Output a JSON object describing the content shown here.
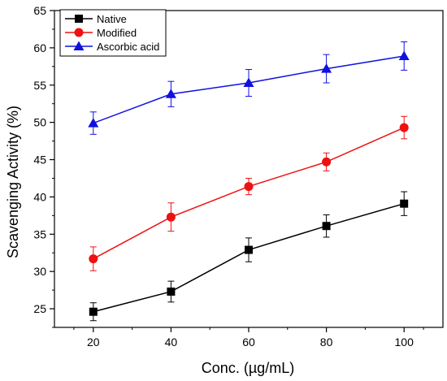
{
  "chart_data": {
    "type": "line",
    "title": "",
    "xlabel": "Conc. (µg/mL)",
    "ylabel": "Scavenging Activity (%)",
    "x": [
      20,
      40,
      60,
      80,
      100
    ],
    "xlim": [
      10,
      110
    ],
    "ylim": [
      22.5,
      65
    ],
    "xticks": [
      20,
      40,
      60,
      80,
      100
    ],
    "yticks": [
      25,
      30,
      35,
      40,
      45,
      50,
      55,
      60,
      65
    ],
    "grid": false,
    "legend_position": "top-left",
    "series": [
      {
        "name": "Native",
        "color": "#000000",
        "marker": "square",
        "values": [
          24.6,
          27.3,
          32.9,
          36.1,
          39.1
        ],
        "errors": [
          1.2,
          1.4,
          1.6,
          1.5,
          1.6
        ]
      },
      {
        "name": "Modified",
        "color": "#ee1111",
        "marker": "circle",
        "values": [
          31.7,
          37.3,
          41.4,
          44.7,
          49.3
        ],
        "errors": [
          1.6,
          1.9,
          1.1,
          1.2,
          1.5
        ]
      },
      {
        "name": "Ascorbic acid",
        "color": "#1010e0",
        "marker": "triangle",
        "values": [
          49.9,
          53.8,
          55.3,
          57.2,
          58.9
        ],
        "errors": [
          1.5,
          1.7,
          1.8,
          1.9,
          1.9
        ]
      }
    ]
  }
}
